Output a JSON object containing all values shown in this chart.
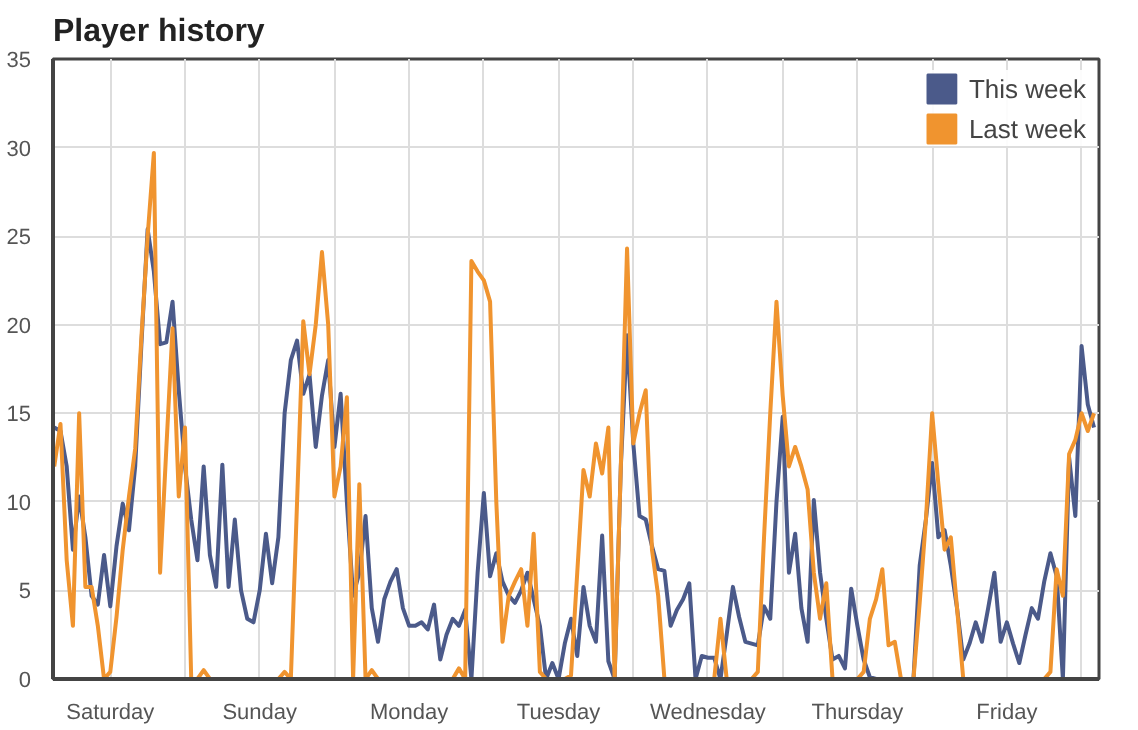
{
  "chart_data": {
    "type": "line",
    "title": "Player history",
    "ylim": [
      0,
      35
    ],
    "yticks": [
      0,
      5,
      10,
      15,
      20,
      25,
      30,
      35
    ],
    "categories": [
      null,
      null,
      null,
      null,
      null,
      null,
      null,
      null,
      null,
      "Saturday",
      null,
      null,
      null,
      null,
      null,
      null,
      null,
      null,
      null,
      null,
      null,
      null,
      null,
      null,
      null,
      null,
      null,
      null,
      null,
      null,
      null,
      null,
      null,
      "Sunday",
      null,
      null,
      null,
      null,
      null,
      null,
      null,
      null,
      null,
      null,
      null,
      null,
      null,
      null,
      null,
      null,
      null,
      null,
      null,
      null,
      null,
      null,
      null,
      "Monday",
      null,
      null,
      null,
      null,
      null,
      null,
      null,
      null,
      null,
      null,
      null,
      null,
      null,
      null,
      null,
      null,
      null,
      null,
      null,
      null,
      null,
      null,
      null,
      "Tuesday",
      null,
      null,
      null,
      null,
      null,
      null,
      null,
      null,
      null,
      null,
      null,
      null,
      null,
      null,
      null,
      null,
      null,
      null,
      null,
      null,
      null,
      null,
      null,
      "Wednesday",
      null,
      null,
      null,
      null,
      null,
      null,
      null,
      null,
      null,
      null,
      null,
      null,
      null,
      null,
      null,
      null,
      null,
      null,
      null,
      null,
      null,
      null,
      null,
      "Thursday",
      null,
      null,
      null,
      null,
      null,
      null,
      null,
      null,
      null,
      null,
      null,
      null,
      null,
      null,
      null,
      null,
      null,
      null,
      null,
      null,
      null,
      null,
      null,
      "Friday",
      null,
      null,
      null,
      null,
      null,
      null,
      null,
      null,
      null,
      null,
      null,
      null,
      null,
      null
    ],
    "grid": true,
    "legend": "top right",
    "line_style": "solid",
    "series": [
      {
        "name": "This week",
        "color": "#4b5a8a",
        "values": [
          14.2,
          14,
          12,
          7.3,
          10.3,
          8,
          4.7,
          4.2,
          7,
          4.1,
          7.5,
          9.9,
          8.4,
          12,
          18.9,
          25.4,
          23,
          18.9,
          19,
          21.3,
          16.3,
          12,
          9,
          6.7,
          12,
          7,
          5.2,
          12.1,
          5.2,
          9,
          5,
          3.4,
          3.2,
          5,
          8.2,
          5.4,
          8,
          15,
          18,
          19.1,
          16.1,
          17.2,
          13.1,
          16,
          18,
          13.1,
          16.1,
          10,
          4.7,
          6,
          9.2,
          4,
          2.1,
          4.5,
          5.5,
          6.2,
          4,
          3,
          3,
          3.2,
          2.8,
          4.2,
          1.1,
          2.5,
          3.4,
          3,
          3.9,
          0,
          6,
          10.5,
          5.8,
          7.1,
          5.5,
          4.7,
          4.3,
          5,
          6,
          4.5,
          3,
          0,
          0.9,
          0,
          2,
          3.4,
          1.3,
          5.2,
          3,
          2.1,
          8.1,
          1,
          0,
          12,
          19.4,
          13.3,
          9.2,
          9,
          7.5,
          6.2,
          6.1,
          3,
          3.9,
          4.5,
          5.4,
          0,
          1.3,
          1.2,
          1.2,
          0,
          2.5,
          5.2,
          3.5,
          2.1,
          2,
          1.9,
          4.1,
          3.4,
          10,
          14.8,
          6,
          8.2,
          4,
          2.1,
          10.1,
          6,
          3.4,
          1.1,
          1.3,
          0.6,
          5.1,
          3,
          1.1,
          0.1,
          0,
          0,
          0,
          0,
          0,
          0,
          0,
          6.4,
          9,
          12.2,
          8,
          8.4,
          6.4,
          4,
          1.1,
          2,
          3.2,
          2.1,
          4,
          6,
          2.1,
          3.2,
          2,
          0.9,
          2.5,
          4,
          3.4,
          5.5,
          7.1,
          5.8,
          0,
          12.5,
          9.2,
          18.8,
          15.5,
          14.2
        ]
      },
      {
        "name": "Last week",
        "color": "#f0942f",
        "values": [
          12,
          14.4,
          6.7,
          3,
          15,
          5.2,
          5.2,
          3,
          0,
          0.4,
          3.5,
          7.3,
          10.3,
          13,
          19.3,
          25,
          29.7,
          6,
          13,
          19.8,
          10.3,
          14.2,
          0,
          0,
          0.5,
          0,
          0,
          0,
          0,
          0,
          0,
          0,
          0,
          0,
          0,
          0,
          0,
          0.4,
          0,
          10,
          20.2,
          17.2,
          20,
          24.1,
          20,
          10.3,
          12,
          15.9,
          0,
          11,
          0,
          0.5,
          0,
          0,
          0,
          0,
          0,
          0,
          0,
          0,
          0,
          0,
          0,
          0,
          0,
          0.6,
          0,
          23.6,
          23,
          22.5,
          21.3,
          10,
          2.1,
          4.7,
          5.5,
          6.2,
          3,
          8.2,
          0.4,
          0,
          0,
          0,
          0,
          0.2,
          6,
          11.8,
          10.3,
          13.3,
          11.6,
          14.2,
          0,
          12,
          24.3,
          13.3,
          15,
          16.3,
          7.3,
          4.7,
          0,
          0,
          0,
          0,
          0,
          0,
          0,
          0,
          0,
          3.4,
          0,
          0,
          0,
          0,
          0,
          0.4,
          8,
          15,
          21.3,
          16,
          12,
          13.1,
          12,
          10.7,
          6,
          3.4,
          5.4,
          0,
          0,
          0,
          0,
          0,
          0.4,
          3.4,
          4.5,
          6.2,
          1.9,
          2.1,
          0,
          0,
          0,
          4.3,
          9,
          15,
          11,
          7.3,
          8,
          4,
          0,
          0,
          0,
          0,
          0,
          0,
          0,
          0,
          0,
          0,
          0,
          0,
          0,
          0,
          0.4,
          6.2,
          4.7,
          12.7,
          13.5,
          15,
          14,
          15
        ]
      }
    ]
  }
}
